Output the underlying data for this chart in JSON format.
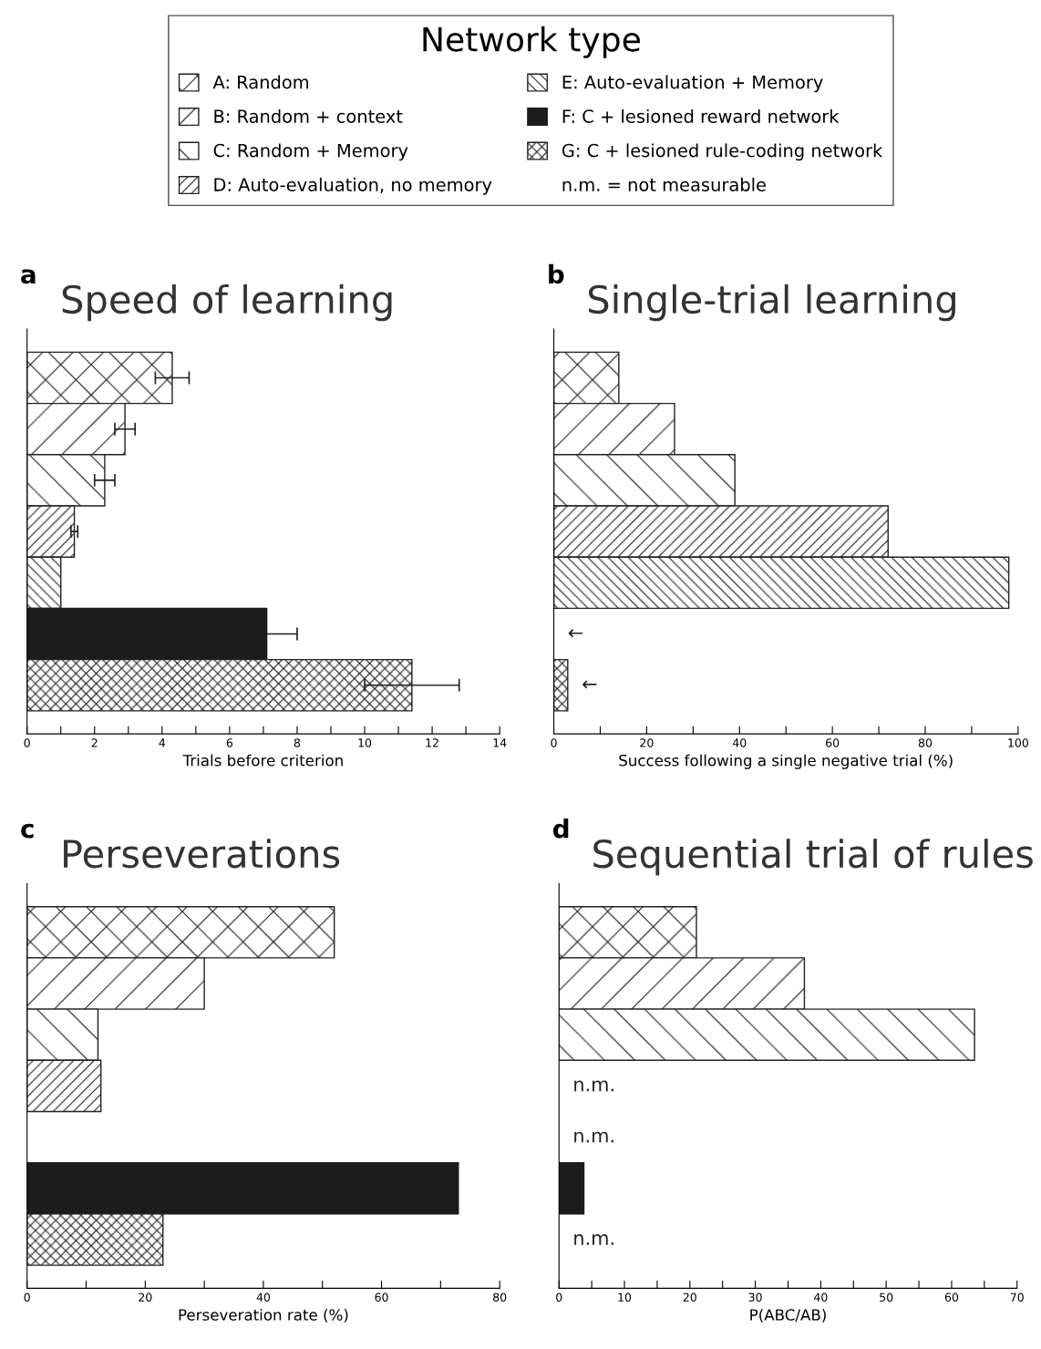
{
  "chart_data": [
    {
      "type": "bar",
      "orientation": "horizontal",
      "title": "Speed of learning",
      "xlabel": "Trials before criterion",
      "annotations": [
        "a",
        "n.m. = not measurable"
      ],
      "legend": "top",
      "legend_title": "Network type",
      "categories": [
        null,
        null,
        null,
        null,
        null,
        null,
        null
      ],
      "xlim": [
        0,
        14
      ],
      "xticks": [
        0,
        {
          "value": 1,
          "label": null
        },
        2,
        {
          "value": 3,
          "label": null
        },
        4,
        {
          "value": 5,
          "label": null
        },
        6,
        {
          "value": 7,
          "label": null
        },
        8,
        {
          "value": 9,
          "label": null
        },
        10,
        {
          "value": 11,
          "label": null
        },
        12,
        {
          "value": 13,
          "label": null
        },
        14
      ],
      "series": [
        {
          "name": "A: Random",
          "color": "#222222",
          "values": [
            4.3,
            null,
            null,
            null,
            null,
            null,
            null
          ],
          "errors": [
            0.5,
            null,
            null,
            null,
            null,
            null,
            null
          ]
        },
        {
          "name": "B: Random + context",
          "color": "#222222",
          "values": [
            null,
            2.9,
            null,
            null,
            null,
            null,
            null
          ],
          "errors": [
            null,
            0.3,
            null,
            null,
            null,
            null,
            null
          ]
        },
        {
          "name": "C: Random + Memory",
          "color": "#222222",
          "values": [
            null,
            null,
            2.3,
            null,
            null,
            null,
            null
          ],
          "errors": [
            null,
            null,
            0.3,
            null,
            null,
            null,
            null
          ]
        },
        {
          "name": "D: Auto-evaluation, no memory",
          "color": "#222222",
          "values": [
            null,
            null,
            null,
            1.4,
            null,
            null,
            null
          ],
          "errors": [
            null,
            null,
            null,
            0.1,
            null,
            null,
            null
          ]
        },
        {
          "name": "E: Auto-evaluation + Memory",
          "color": "#222222",
          "values": [
            null,
            null,
            null,
            null,
            1.0,
            null,
            null
          ]
        },
        {
          "name": "F: C + lesioned reward network",
          "color": "#1c1c1c",
          "values": [
            null,
            null,
            null,
            null,
            null,
            7.1,
            null
          ],
          "errors": [
            null,
            null,
            null,
            null,
            null,
            0.9,
            null
          ]
        },
        {
          "name": "G: C + lesioned rule-coding network",
          "color": "#222222",
          "values": [
            null,
            null,
            null,
            null,
            null,
            null,
            11.4
          ],
          "errors": [
            null,
            null,
            null,
            null,
            null,
            null,
            1.4
          ]
        }
      ]
    },
    {
      "type": "bar",
      "orientation": "horizontal",
      "title": "Single-trial learning",
      "xlabel": "Success following a single negative trial (%)",
      "annotations": [
        "b"
      ],
      "categories": [
        null,
        null,
        null,
        null,
        null,
        null,
        null
      ],
      "xlim": [
        0,
        100
      ],
      "xticks": [
        0,
        {
          "value": 10,
          "label": null
        },
        20,
        {
          "value": 30,
          "label": null
        },
        40,
        {
          "value": 50,
          "label": null
        },
        60,
        {
          "value": 70,
          "label": null
        },
        80,
        {
          "value": 90,
          "label": null
        },
        100
      ],
      "series": [
        {
          "color": "#222222",
          "values": [
            14,
            null,
            null,
            null,
            null,
            null,
            null
          ]
        },
        {
          "color": "#222222",
          "values": [
            null,
            26,
            null,
            null,
            null,
            null,
            null
          ]
        },
        {
          "color": "#222222",
          "values": [
            null,
            null,
            39,
            null,
            null,
            null,
            null
          ]
        },
        {
          "color": "#222222",
          "values": [
            null,
            null,
            null,
            72,
            null,
            null,
            null
          ]
        },
        {
          "color": "#222222",
          "values": [
            null,
            null,
            null,
            null,
            98,
            null,
            null
          ]
        },
        {
          "color": "#1c1c1c",
          "values": [
            null,
            null,
            null,
            null,
            null,
            null,
            null
          ],
          "value_labels": [
            null,
            null,
            null,
            null,
            null,
            "←",
            null
          ]
        },
        {
          "color": "#222222",
          "values": [
            null,
            null,
            null,
            null,
            null,
            null,
            3
          ],
          "value_labels": [
            null,
            null,
            null,
            null,
            null,
            null,
            "←"
          ]
        }
      ]
    },
    {
      "type": "bar",
      "orientation": "horizontal",
      "title": "Perseverations",
      "xlabel": "Perseveration rate (%)",
      "annotations": [
        "c"
      ],
      "categories": [
        null,
        null,
        null,
        null,
        null,
        null,
        null
      ],
      "xlim": [
        0,
        80
      ],
      "xticks": [
        0,
        {
          "value": 10,
          "label": null
        },
        20,
        {
          "value": 30,
          "label": null
        },
        40,
        {
          "value": 50,
          "label": null
        },
        60,
        {
          "value": 70,
          "label": null
        },
        80
      ],
      "series": [
        {
          "color": "#222222",
          "values": [
            52,
            null,
            null,
            null,
            null,
            null,
            null
          ]
        },
        {
          "color": "#222222",
          "values": [
            null,
            30,
            null,
            null,
            null,
            null,
            null
          ]
        },
        {
          "color": "#222222",
          "values": [
            null,
            null,
            12,
            null,
            null,
            null,
            null
          ]
        },
        {
          "color": "#222222",
          "values": [
            null,
            null,
            null,
            12.5,
            null,
            null,
            null
          ]
        },
        {
          "color": "#ffffff",
          "values": [
            null,
            null,
            null,
            null,
            null,
            null,
            null
          ]
        },
        {
          "color": "#1c1c1c",
          "values": [
            null,
            null,
            null,
            null,
            null,
            73,
            null
          ]
        },
        {
          "color": "#222222",
          "values": [
            null,
            null,
            null,
            null,
            null,
            null,
            23
          ]
        }
      ]
    },
    {
      "type": "bar",
      "orientation": "horizontal",
      "title": "Sequential trial of rules",
      "xlabel": "P(ABC/AB)",
      "annotations": [
        "d"
      ],
      "categories": [
        null,
        null,
        null,
        null,
        null,
        null,
        null
      ],
      "xlim": [
        0,
        70
      ],
      "xticks": [
        0,
        {
          "value": 5,
          "label": null
        },
        10,
        {
          "value": 15,
          "label": null
        },
        20,
        {
          "value": 25,
          "label": null
        },
        30,
        {
          "value": 35,
          "label": null
        },
        40,
        {
          "value": 45,
          "label": null
        },
        50,
        {
          "value": 55,
          "label": null
        },
        60,
        {
          "value": 65,
          "label": null
        },
        70
      ],
      "series": [
        {
          "color": "#222222",
          "values": [
            21,
            null,
            null,
            null,
            null,
            null,
            null
          ]
        },
        {
          "color": "#222222",
          "values": [
            null,
            37.5,
            null,
            null,
            null,
            null,
            null
          ]
        },
        {
          "color": "#222222",
          "values": [
            null,
            null,
            63.5,
            null,
            null,
            null,
            null
          ]
        },
        {
          "color": "#ffffff",
          "values": [
            null,
            null,
            null,
            null,
            null,
            null,
            null
          ],
          "value_labels": [
            null,
            null,
            null,
            "n.m.",
            null,
            null,
            null
          ]
        },
        {
          "color": "#ffffff",
          "values": [
            null,
            null,
            null,
            null,
            null,
            null,
            null
          ],
          "value_labels": [
            null,
            null,
            null,
            null,
            "n.m.",
            null,
            null
          ]
        },
        {
          "color": "#1c1c1c",
          "values": [
            null,
            null,
            null,
            null,
            null,
            3.8,
            null
          ]
        },
        {
          "color": "#ffffff",
          "values": [
            null,
            null,
            null,
            null,
            null,
            null,
            null
          ],
          "value_labels": [
            null,
            null,
            null,
            null,
            null,
            null,
            "n.m."
          ]
        }
      ]
    }
  ]
}
